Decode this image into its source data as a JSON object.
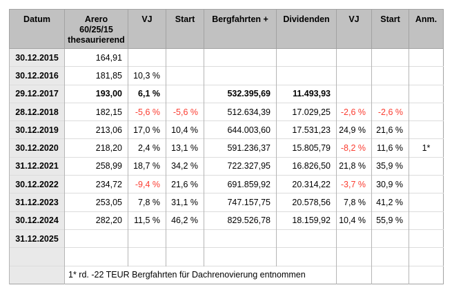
{
  "colors": {
    "header_bg": "#c1c1c1",
    "row_label_bg": "#e9e9e9",
    "table_outline": "#a2a2a2",
    "grid_vertical": "#b5b5b5",
    "grid_horizontal": "#dcdcdc",
    "negative_value": "#fb3c30",
    "text": "#000000"
  },
  "chart_data": {
    "type": "table",
    "title": "",
    "columns": [
      "Datum",
      "Arero\n60/25/15\nthesaurierend",
      "VJ",
      "Start",
      "Bergfahrten +",
      "Dividenden",
      "VJ",
      "Start",
      "Anm."
    ],
    "rows": [
      {
        "cells": [
          "30.12.2015",
          "164,91",
          "",
          "",
          "",
          "",
          "",
          "",
          ""
        ]
      },
      {
        "cells": [
          "30.12.2016",
          "181,85",
          "10,3 %",
          "",
          "",
          "",
          "",
          "",
          ""
        ]
      },
      {
        "cells": [
          "29.12.2017",
          "193,00",
          "6,1 %",
          "",
          "532.395,69",
          "11.493,93",
          "",
          "",
          ""
        ],
        "bold": true
      },
      {
        "cells": [
          "28.12.2018",
          "182,15",
          "-5,6 %",
          "-5,6 %",
          "512.634,39",
          "17.029,25",
          "-2,6 %",
          "-2,6 %",
          ""
        ]
      },
      {
        "cells": [
          "30.12.2019",
          "213,06",
          "17,0 %",
          "10,4 %",
          "644.003,60",
          "17.531,23",
          "24,9 %",
          "21,6 %",
          ""
        ]
      },
      {
        "cells": [
          "30.12.2020",
          "218,20",
          "2,4 %",
          "13,1 %",
          "591.236,37",
          "15.805,79",
          "-8,2 %",
          "11,6 %",
          "1*"
        ]
      },
      {
        "cells": [
          "31.12.2021",
          "258,99",
          "18,7 %",
          "34,2 %",
          "722.327,95",
          "16.826,50",
          "21,8 %",
          "35,9 %",
          ""
        ]
      },
      {
        "cells": [
          "30.12.2022",
          "234,72",
          "-9,4 %",
          "21,6 %",
          "691.859,92",
          "20.314,22",
          "-3,7 %",
          "30,9 %",
          ""
        ]
      },
      {
        "cells": [
          "31.12.2023",
          "253,05",
          "7,8 %",
          "31,1 %",
          "747.157,75",
          "20.578,56",
          "7,8 %",
          "41,2 %",
          ""
        ]
      },
      {
        "cells": [
          "30.12.2024",
          "282,20",
          "11,5 %",
          "46,2 %",
          "829.526,78",
          "18.159,92",
          "10,4 %",
          "55,9 %",
          ""
        ]
      },
      {
        "cells": [
          "31.12.2025",
          "",
          "",
          "",
          "",
          "",
          "",
          "",
          ""
        ]
      },
      {
        "cells": [
          "",
          "",
          "",
          "",
          "",
          "",
          "",
          "",
          ""
        ]
      }
    ],
    "footnote": "1* rd. -22 TEUR Bergfahrten für Dachrenovierung entnommen"
  }
}
